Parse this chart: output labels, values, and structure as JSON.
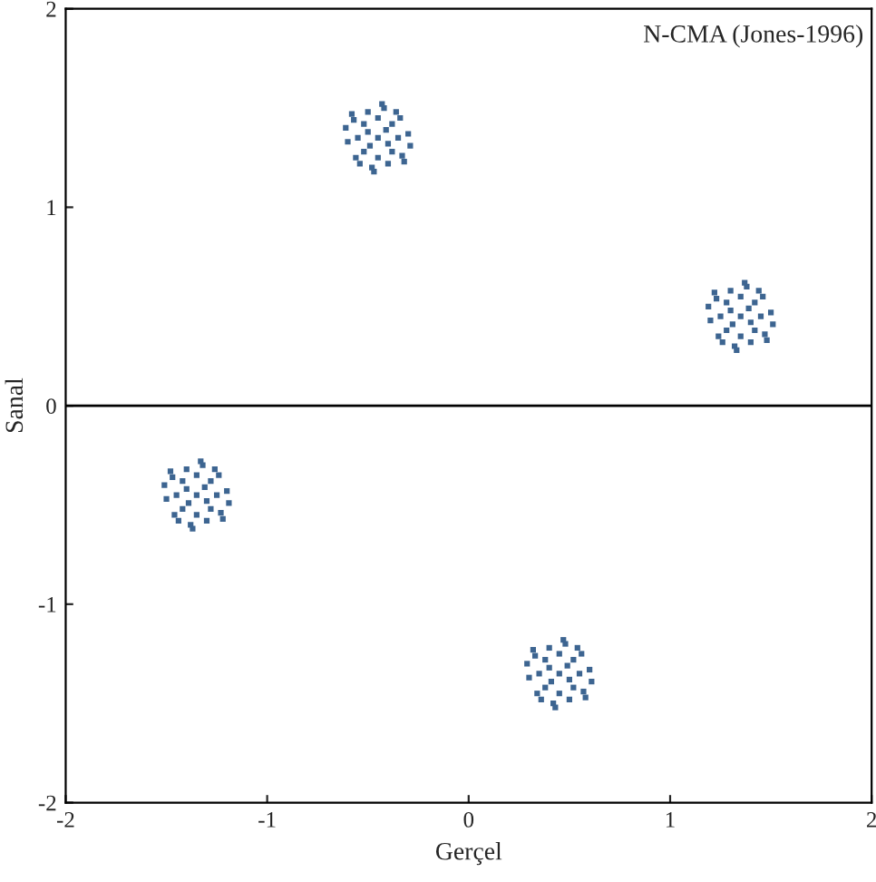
{
  "chart_data": {
    "type": "scatter",
    "xlabel": "Gerçel",
    "ylabel": "Sanal",
    "marker": "square",
    "grid": false,
    "xlim": [
      -2,
      2
    ],
    "ylim": [
      -2,
      2
    ],
    "xticks": [
      -2,
      -1,
      0,
      1,
      2
    ],
    "yticks": [
      -2,
      -1,
      0,
      1,
      2
    ],
    "ref_lines": [
      {
        "axis": "y",
        "value": 0,
        "color": "#000000"
      }
    ],
    "annotations": [
      "N-CMA (Jones-1996)"
    ],
    "series": [
      {
        "color": "#3d6591",
        "x": [
          -0.45,
          -0.35,
          -0.55,
          -0.45,
          -0.45,
          -0.38,
          -0.52,
          -0.38,
          -0.52,
          -0.3,
          -0.6,
          -0.42,
          -0.48,
          -0.33,
          -0.57,
          -0.34,
          -0.56,
          -0.4,
          -0.5,
          -0.29,
          -0.61,
          -0.41,
          -0.49,
          -0.4,
          -0.5,
          -0.36,
          -0.54,
          -0.32,
          -0.58,
          -0.43,
          -0.47
        ],
        "values": [
          1.35,
          1.35,
          1.35,
          1.45,
          1.25,
          1.42,
          1.42,
          1.28,
          1.28,
          1.37,
          1.33,
          1.5,
          1.2,
          1.26,
          1.44,
          1.45,
          1.25,
          1.22,
          1.48,
          1.31,
          1.4,
          1.39,
          1.31,
          1.32,
          1.38,
          1.48,
          1.22,
          1.23,
          1.47,
          1.52,
          1.18
        ]
      },
      {
        "color": "#3d6591",
        "x": [
          1.35,
          1.45,
          1.25,
          1.35,
          1.35,
          1.42,
          1.28,
          1.42,
          1.28,
          1.5,
          1.2,
          1.38,
          1.32,
          1.47,
          1.23,
          1.46,
          1.24,
          1.4,
          1.3,
          1.51,
          1.19,
          1.39,
          1.31,
          1.4,
          1.3,
          1.44,
          1.26,
          1.48,
          1.22,
          1.37,
          1.33
        ],
        "values": [
          0.45,
          0.45,
          0.45,
          0.55,
          0.35,
          0.52,
          0.52,
          0.38,
          0.38,
          0.47,
          0.43,
          0.6,
          0.3,
          0.36,
          0.54,
          0.55,
          0.35,
          0.32,
          0.58,
          0.41,
          0.5,
          0.49,
          0.41,
          0.42,
          0.48,
          0.58,
          0.32,
          0.33,
          0.57,
          0.62,
          0.28
        ]
      },
      {
        "color": "#3d6591",
        "x": [
          -1.35,
          -1.25,
          -1.45,
          -1.35,
          -1.35,
          -1.28,
          -1.42,
          -1.28,
          -1.42,
          -1.2,
          -1.5,
          -1.32,
          -1.38,
          -1.23,
          -1.47,
          -1.24,
          -1.46,
          -1.3,
          -1.4,
          -1.19,
          -1.51,
          -1.31,
          -1.39,
          -1.3,
          -1.4,
          -1.26,
          -1.44,
          -1.22,
          -1.48,
          -1.33,
          -1.37
        ],
        "values": [
          -0.45,
          -0.45,
          -0.45,
          -0.35,
          -0.55,
          -0.38,
          -0.38,
          -0.52,
          -0.52,
          -0.43,
          -0.47,
          -0.3,
          -0.6,
          -0.54,
          -0.36,
          -0.35,
          -0.55,
          -0.58,
          -0.32,
          -0.49,
          -0.4,
          -0.41,
          -0.49,
          -0.48,
          -0.42,
          -0.32,
          -0.58,
          -0.57,
          -0.33,
          -0.28,
          -0.62
        ]
      },
      {
        "color": "#3d6591",
        "x": [
          0.45,
          0.55,
          0.35,
          0.45,
          0.45,
          0.52,
          0.38,
          0.52,
          0.38,
          0.6,
          0.3,
          0.48,
          0.42,
          0.57,
          0.33,
          0.56,
          0.34,
          0.5,
          0.4,
          0.61,
          0.29,
          0.49,
          0.41,
          0.5,
          0.4,
          0.54,
          0.36,
          0.58,
          0.32,
          0.47,
          0.43
        ],
        "values": [
          -1.35,
          -1.35,
          -1.35,
          -1.25,
          -1.45,
          -1.28,
          -1.28,
          -1.42,
          -1.42,
          -1.33,
          -1.37,
          -1.2,
          -1.5,
          -1.44,
          -1.26,
          -1.25,
          -1.45,
          -1.48,
          -1.22,
          -1.39,
          -1.3,
          -1.31,
          -1.39,
          -1.38,
          -1.32,
          -1.22,
          -1.48,
          -1.47,
          -1.23,
          -1.18,
          -1.52
        ]
      }
    ]
  }
}
